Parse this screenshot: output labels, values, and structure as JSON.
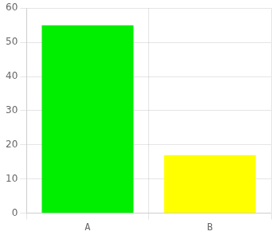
{
  "chart_data": {
    "type": "bar",
    "categories": [
      "A",
      "B"
    ],
    "values": [
      55,
      17
    ],
    "colors": [
      "#00ee00",
      "#ffff00"
    ],
    "ylim": [
      0,
      60
    ],
    "yticks": [
      0,
      10,
      20,
      30,
      40,
      50,
      60
    ],
    "grid": true
  }
}
